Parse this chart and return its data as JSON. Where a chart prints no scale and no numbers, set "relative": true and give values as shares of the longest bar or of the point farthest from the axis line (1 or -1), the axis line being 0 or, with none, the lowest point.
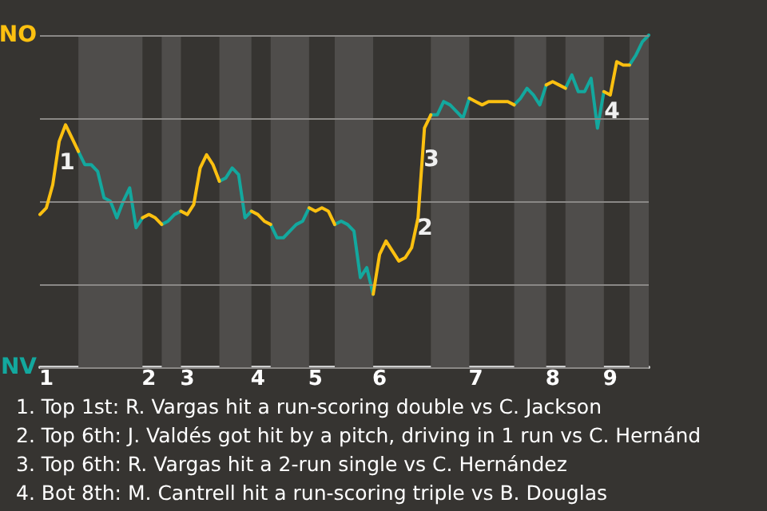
{
  "chart_data": {
    "type": "line",
    "relative": true,
    "categories": [
      null,
      "1",
      null,
      null,
      null,
      null,
      null,
      null,
      null,
      null,
      null,
      null,
      null,
      null,
      null,
      null,
      null,
      "2",
      null,
      null,
      null,
      null,
      null,
      "3",
      null,
      null,
      null,
      null,
      null,
      null,
      null,
      null,
      null,
      null,
      "4",
      null,
      null,
      null,
      null,
      null,
      null,
      null,
      null,
      "5",
      null,
      null,
      null,
      null,
      null,
      null,
      null,
      null,
      null,
      "6",
      null,
      null,
      null,
      null,
      null,
      null,
      null,
      null,
      null,
      null,
      null,
      null,
      null,
      null,
      "7",
      null,
      null,
      null,
      null,
      null,
      null,
      null,
      null,
      null,
      null,
      null,
      "8",
      null,
      null,
      null,
      null,
      null,
      null,
      null,
      null,
      "9",
      null,
      null,
      null,
      null,
      null,
      null
    ],
    "series": [
      {
        "color": "#fcc010",
        "values": [
          0.46,
          0.48,
          0.55,
          0.68,
          0.73,
          0.69,
          0.65,
          null,
          null,
          null,
          null,
          null,
          null,
          null,
          null,
          null,
          0.45,
          0.46,
          0.45,
          0.43,
          null,
          null,
          0.47,
          0.46,
          0.49,
          0.6,
          0.64,
          0.61,
          0.56,
          null,
          null,
          null,
          null,
          0.47,
          0.46,
          0.44,
          0.43,
          null,
          null,
          null,
          null,
          null,
          0.48,
          0.47,
          0.48,
          0.47,
          0.43,
          null,
          null,
          null,
          null,
          null,
          0.22,
          0.34,
          0.38,
          0.35,
          0.32,
          0.33,
          0.36,
          0.45,
          0.72,
          0.76,
          null,
          null,
          null,
          null,
          null,
          0.81,
          0.8,
          0.79,
          0.8,
          0.8,
          0.8,
          0.8,
          0.79,
          null,
          null,
          null,
          null,
          0.85,
          0.86,
          0.85,
          0.84,
          null,
          null,
          null,
          null,
          null,
          0.83,
          0.82,
          0.92,
          0.91,
          0.91,
          null,
          null,
          null
        ]
      },
      {
        "color": "#13a89e",
        "values": [
          null,
          null,
          null,
          null,
          null,
          null,
          0.65,
          0.61,
          0.61,
          0.59,
          0.51,
          0.5,
          0.45,
          0.5,
          0.54,
          0.42,
          0.45,
          null,
          null,
          0.43,
          0.44,
          0.46,
          0.47,
          null,
          null,
          null,
          null,
          null,
          0.56,
          0.57,
          0.6,
          0.58,
          0.45,
          0.47,
          null,
          null,
          0.43,
          0.39,
          0.39,
          0.41,
          0.43,
          0.44,
          0.48,
          null,
          null,
          null,
          0.43,
          0.44,
          0.43,
          0.41,
          0.27,
          0.3,
          0.22,
          null,
          null,
          null,
          null,
          null,
          null,
          null,
          null,
          0.76,
          0.76,
          0.8,
          0.79,
          0.77,
          0.75,
          0.81,
          null,
          null,
          null,
          null,
          null,
          null,
          0.79,
          0.81,
          0.84,
          0.82,
          0.79,
          0.85,
          null,
          null,
          0.84,
          0.88,
          0.83,
          0.83,
          0.87,
          0.72,
          0.83,
          null,
          null,
          null,
          0.91,
          0.94,
          0.98,
          1
        ]
      }
    ],
    "marker": "none",
    "line_style": "solid",
    "ref_lines": [
      {
        "axis": "y",
        "value": 0,
        "label": "NV"
      },
      {
        "axis": "y",
        "value": 0.25
      },
      {
        "axis": "y",
        "value": 0.5
      },
      {
        "axis": "y",
        "value": 0.75
      },
      {
        "axis": "y",
        "value": 1,
        "label": "NO"
      }
    ],
    "annotations": [
      "1",
      "2",
      "3",
      "4",
      "1. Top 1st: R. Vargas hit a run-scoring double vs C. Jackson",
      "2. Top 6th: J. Valdés got hit by a pitch, driving in 1 run vs C. Hernánd",
      "3. Top 6th: R. Vargas hit a 2-run single vs C. Hernández",
      "4. Bot 8th: M. Cantrell hit a run-scoring triple vs B. Douglas"
    ]
  }
}
